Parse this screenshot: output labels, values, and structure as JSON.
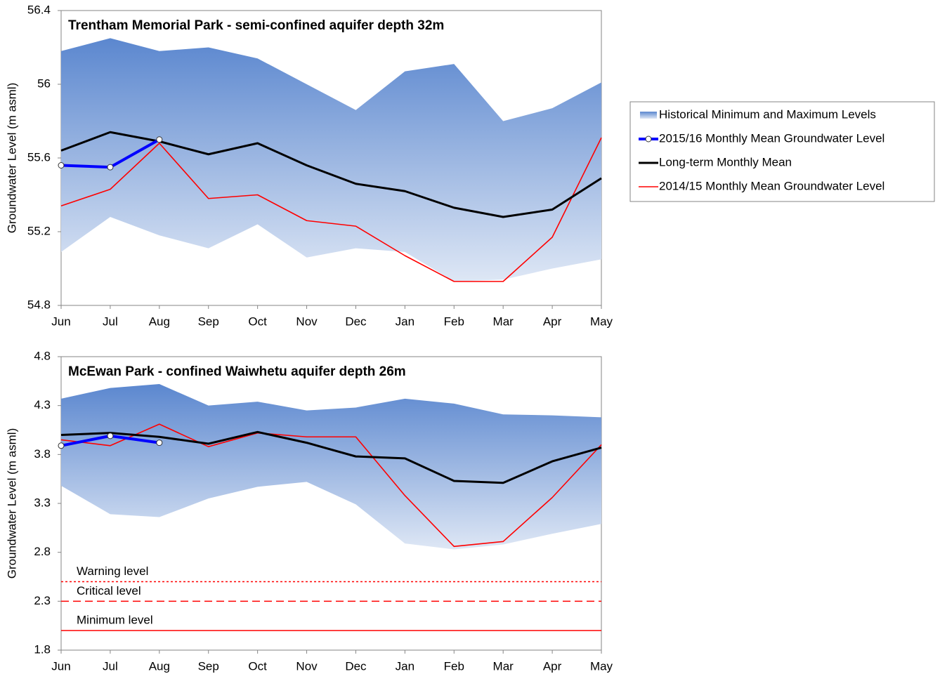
{
  "chart_data": [
    {
      "type": "line",
      "title": "Trentham Memorial  Park  -  semi-confined aquifer depth 32m",
      "title_color": "#0000ff",
      "y_label": "Groundwater Level (m asml)",
      "categories": [
        "Jun",
        "Jul",
        "Aug",
        "Sep",
        "Oct",
        "Nov",
        "Dec",
        "Jan",
        "Feb",
        "Mar",
        "Apr",
        "May"
      ],
      "ylim": [
        54.8,
        56.4
      ],
      "yticks": [
        54.8,
        55.2,
        55.6,
        56,
        56.4
      ],
      "legend": "right",
      "series": [
        {
          "name": "Historical Minimum and Maximum Levels",
          "type": "band",
          "color": "#5b87cf",
          "low": [
            55.09,
            55.28,
            55.18,
            55.11,
            55.24,
            55.06,
            55.11,
            55.09,
            54.93,
            54.94,
            55.0,
            55.05
          ],
          "high": [
            56.18,
            56.25,
            56.18,
            56.2,
            56.14,
            56.0,
            55.86,
            56.07,
            56.11,
            55.8,
            55.87,
            56.01
          ]
        },
        {
          "name": "2015/16 Monthly Mean Groundwater Level",
          "color": "#0000ff",
          "markers": true,
          "values": [
            55.56,
            55.55,
            55.7,
            null,
            null,
            null,
            null,
            null,
            null,
            null,
            null,
            null
          ]
        },
        {
          "name": "Long-term Monthly Mean",
          "color": "#000000",
          "values": [
            55.64,
            55.74,
            55.69,
            55.62,
            55.68,
            55.56,
            55.46,
            55.42,
            55.33,
            55.28,
            55.32,
            55.49
          ]
        },
        {
          "name": "2014/15 Monthly Mean Groundwater Level",
          "color": "#ff0000",
          "values": [
            55.34,
            55.43,
            55.68,
            55.38,
            55.4,
            55.26,
            55.23,
            55.07,
            54.93,
            54.93,
            55.17,
            55.71
          ]
        }
      ]
    },
    {
      "type": "line",
      "title": "McEwan Park  -  confined Waiwhetu aquifer depth 26m",
      "title_color": "#0000ff",
      "y_label": "Groundwater Level (m asml)",
      "categories": [
        "Jun",
        "Jul",
        "Aug",
        "Sep",
        "Oct",
        "Nov",
        "Dec",
        "Jan",
        "Feb",
        "Mar",
        "Apr",
        "May"
      ],
      "ylim": [
        1.8,
        4.8
      ],
      "yticks": [
        1.8,
        2.3,
        2.8,
        3.3,
        3.8,
        4.3,
        4.8
      ],
      "series": [
        {
          "type": "band",
          "color": "#5b87cf",
          "low": [
            3.48,
            3.19,
            3.16,
            3.35,
            3.47,
            3.52,
            3.29,
            2.89,
            2.83,
            2.88,
            2.99,
            3.09
          ],
          "high": [
            4.37,
            4.48,
            4.52,
            4.3,
            4.34,
            4.25,
            4.28,
            4.37,
            4.32,
            4.21,
            4.2,
            4.18
          ]
        },
        {
          "color": "#0000ff",
          "markers": true,
          "values": [
            3.89,
            3.99,
            3.92,
            null,
            null,
            null,
            null,
            null,
            null,
            null,
            null,
            null
          ]
        },
        {
          "color": "#000000",
          "values": [
            4.0,
            4.02,
            3.98,
            3.91,
            4.03,
            3.92,
            3.78,
            3.76,
            3.53,
            3.51,
            3.73,
            3.87
          ]
        },
        {
          "color": "#ff0000",
          "values": [
            3.95,
            3.89,
            4.11,
            3.88,
            4.02,
            3.98,
            3.98,
            3.38,
            2.86,
            2.91,
            3.36,
            3.9
          ]
        }
      ],
      "reference_lines": [
        {
          "label": "Warning level",
          "value": 2.5,
          "color": "#ff0000",
          "style": "dotted"
        },
        {
          "label": "Critical level",
          "value": 2.3,
          "color": "#ff0000",
          "style": "dashed"
        },
        {
          "label": "Minimum level",
          "value": 2.0,
          "color": "#ff0000",
          "style": "solid"
        }
      ]
    }
  ]
}
